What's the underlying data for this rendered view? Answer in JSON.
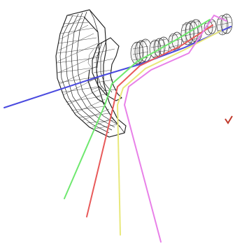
{
  "scene": {
    "rays": [
      {
        "name": "axis-ray",
        "color": "#4a4adf"
      },
      {
        "name": "green-ray",
        "color": "#6fe86f"
      },
      {
        "name": "red-ray",
        "color": "#e85a5a"
      },
      {
        "name": "yellow-ray",
        "color": "#e8e87a"
      },
      {
        "name": "magenta-ray",
        "color": "#e880e8"
      }
    ],
    "colors": {
      "mesh": "#222222",
      "background": "#ffffff",
      "fragment": "#c0392b"
    }
  }
}
